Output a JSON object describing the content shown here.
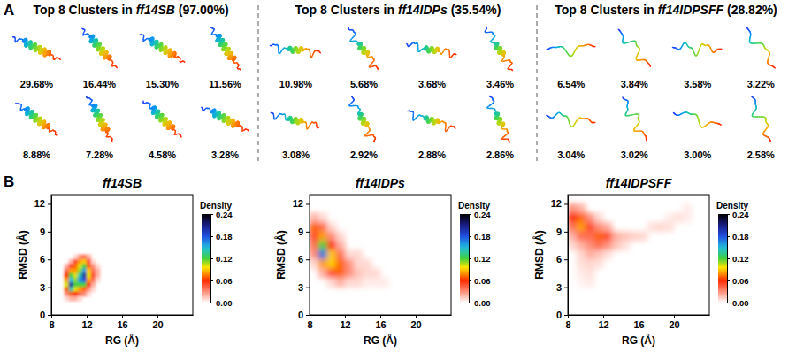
{
  "panel_labels": [
    "A",
    "B"
  ],
  "clusters": [
    {
      "title": "Top 8 Clusters in ff14SB (97.00%)",
      "values": [
        29.68,
        16.44,
        15.3,
        11.56,
        8.88,
        7.28,
        4.58,
        3.28
      ],
      "value_labels": [
        "29.68%",
        "16.44%",
        "15.30%",
        "11.56%",
        "8.88%",
        "7.28%",
        "4.58%",
        "3.28%"
      ]
    },
    {
      "title": "Top 8 Clusters in ff14IDPs (35.54%)",
      "values": [
        10.98,
        5.68,
        3.68,
        3.46,
        3.08,
        2.92,
        2.88,
        2.86
      ],
      "value_labels": [
        "10.98%",
        "5.68%",
        "3.68%",
        "3.46%",
        "3.08%",
        "2.92%",
        "2.88%",
        "2.86%"
      ]
    },
    {
      "title": "Top 8 Clusters in ff14IDPSFF (28.82%)",
      "values": [
        6.54,
        3.84,
        3.58,
        3.22,
        3.04,
        3.02,
        3.0,
        2.58
      ],
      "value_labels": [
        "6.54%",
        "3.84%",
        "3.58%",
        "3.22%",
        "3.04%",
        "3.02%",
        "3.00%",
        "2.58%"
      ]
    }
  ],
  "chart_data": [
    {
      "type": "heatmap",
      "title": "ff14SB",
      "x_label": "RG (Å)",
      "y_label": "RMSD (Å)",
      "xlim": [
        8,
        24
      ],
      "xticks": [
        8,
        12,
        16,
        20
      ],
      "ylim": [
        0,
        13
      ],
      "yticks": [
        0,
        3,
        6,
        9,
        12
      ],
      "cells": [
        [
          10.75,
          6.25,
          0.01
        ],
        [
          11.25,
          6.25,
          0.03
        ],
        [
          11.75,
          6.25,
          0.04
        ],
        [
          12.25,
          6.25,
          0.02
        ],
        [
          10.25,
          5.75,
          0.02
        ],
        [
          10.75,
          5.75,
          0.05
        ],
        [
          11.25,
          5.75,
          0.08
        ],
        [
          11.75,
          5.75,
          0.09
        ],
        [
          12.25,
          5.75,
          0.05
        ],
        [
          12.75,
          5.75,
          0.01
        ],
        [
          9.75,
          5.25,
          0.02
        ],
        [
          10.25,
          5.25,
          0.05
        ],
        [
          10.75,
          5.25,
          0.07
        ],
        [
          11.25,
          5.25,
          0.1
        ],
        [
          11.75,
          5.25,
          0.12
        ],
        [
          12.25,
          5.25,
          0.07
        ],
        [
          12.75,
          5.25,
          0.03
        ],
        [
          13.25,
          5.25,
          0.01
        ],
        [
          9.75,
          4.75,
          0.04
        ],
        [
          10.25,
          4.75,
          0.08
        ],
        [
          10.75,
          4.75,
          0.08
        ],
        [
          11.25,
          4.75,
          0.11
        ],
        [
          11.75,
          4.75,
          0.16
        ],
        [
          12.25,
          4.75,
          0.09
        ],
        [
          12.75,
          4.75,
          0.04
        ],
        [
          13.25,
          4.75,
          0.02
        ],
        [
          9.75,
          4.25,
          0.06
        ],
        [
          10.25,
          4.25,
          0.12
        ],
        [
          10.75,
          4.25,
          0.1
        ],
        [
          11.25,
          4.25,
          0.14
        ],
        [
          11.75,
          4.25,
          0.2
        ],
        [
          12.25,
          4.25,
          0.1
        ],
        [
          12.75,
          4.25,
          0.05
        ],
        [
          13.25,
          4.25,
          0.02
        ],
        [
          9.75,
          3.75,
          0.08
        ],
        [
          10.25,
          3.75,
          0.15
        ],
        [
          10.75,
          3.75,
          0.11
        ],
        [
          11.25,
          3.75,
          0.16
        ],
        [
          11.75,
          3.75,
          0.18
        ],
        [
          12.25,
          3.75,
          0.08
        ],
        [
          12.75,
          3.75,
          0.04
        ],
        [
          13.25,
          3.75,
          0.01
        ],
        [
          9.75,
          3.25,
          0.1
        ],
        [
          10.25,
          3.25,
          0.2
        ],
        [
          10.75,
          3.25,
          0.12
        ],
        [
          11.25,
          3.25,
          0.12
        ],
        [
          11.75,
          3.25,
          0.12
        ],
        [
          12.25,
          3.25,
          0.06
        ],
        [
          12.75,
          3.25,
          0.02
        ],
        [
          9.75,
          2.75,
          0.07
        ],
        [
          10.25,
          2.75,
          0.14
        ],
        [
          10.75,
          2.75,
          0.1
        ],
        [
          11.25,
          2.75,
          0.08
        ],
        [
          11.75,
          2.75,
          0.07
        ],
        [
          12.25,
          2.75,
          0.03
        ],
        [
          12.75,
          2.75,
          0.01
        ],
        [
          9.75,
          2.25,
          0.03
        ],
        [
          10.25,
          2.25,
          0.07
        ],
        [
          10.75,
          2.25,
          0.06
        ],
        [
          11.25,
          2.25,
          0.04
        ],
        [
          11.75,
          2.25,
          0.03
        ],
        [
          12.25,
          2.25,
          0.01
        ],
        [
          9.75,
          1.75,
          0.01
        ],
        [
          10.25,
          1.75,
          0.02
        ],
        [
          10.75,
          1.75,
          0.02
        ],
        [
          11.25,
          1.75,
          0.01
        ]
      ],
      "colorbar": {
        "title": "Density",
        "lim": [
          0,
          0.24
        ],
        "ticks": [
          {
            "value": 0,
            "label": "0.00"
          },
          0.06,
          0.12,
          0.18,
          0.24
        ]
      }
    },
    {
      "type": "heatmap",
      "title": "ff14IDPs",
      "x_label": "RG (Å)",
      "y_label": "RMSD (Å)",
      "xlim": [
        8,
        24
      ],
      "xticks": [
        8,
        12,
        16,
        20
      ],
      "ylim": [
        0,
        13
      ],
      "yticks": [
        0,
        3,
        6,
        9,
        12
      ],
      "cells": [
        [
          8.5,
          10.5,
          0.02
        ],
        [
          9.5,
          10.5,
          0.01
        ],
        [
          8.5,
          9.5,
          0.07
        ],
        [
          9.5,
          9.5,
          0.04
        ],
        [
          10.5,
          9.5,
          0.01
        ],
        [
          8.5,
          8.5,
          0.05
        ],
        [
          9.5,
          8.5,
          0.08
        ],
        [
          10.5,
          8.5,
          0.03
        ],
        [
          11.5,
          8.5,
          0.01
        ],
        [
          8.5,
          7.5,
          0.04
        ],
        [
          9.5,
          7.5,
          0.12
        ],
        [
          10.5,
          7.5,
          0.06
        ],
        [
          11.5,
          7.5,
          0.02
        ],
        [
          8.5,
          6.5,
          0.03
        ],
        [
          9.5,
          6.5,
          0.17
        ],
        [
          10.5,
          6.5,
          0.09
        ],
        [
          11.5,
          6.5,
          0.04
        ],
        [
          12.5,
          6.5,
          0.01
        ],
        [
          13.5,
          6.5,
          0.01
        ],
        [
          8.5,
          5.5,
          0.01
        ],
        [
          9.5,
          5.5,
          0.08
        ],
        [
          10.5,
          5.5,
          0.09
        ],
        [
          11.5,
          5.5,
          0.07
        ],
        [
          12.5,
          5.5,
          0.03
        ],
        [
          13.5,
          5.5,
          0.01
        ],
        [
          14.5,
          5.5,
          0.01
        ],
        [
          9.5,
          4.5,
          0.02
        ],
        [
          10.5,
          4.5,
          0.05
        ],
        [
          11.5,
          4.5,
          0.07
        ],
        [
          12.5,
          4.5,
          0.03
        ],
        [
          13.5,
          4.5,
          0.015
        ],
        [
          14.5,
          4.5,
          0.01
        ],
        [
          15.5,
          4.5,
          0.01
        ],
        [
          10.5,
          3.5,
          0.01
        ],
        [
          11.5,
          3.5,
          0.02
        ],
        [
          12.5,
          3.5,
          0.01
        ],
        [
          13.5,
          3.5,
          0.01
        ],
        [
          14.5,
          3.5,
          0.005
        ],
        [
          15.5,
          3.5,
          0.005
        ],
        [
          16.5,
          3.5,
          0.005
        ]
      ],
      "colorbar": {
        "title": "Density",
        "lim": [
          0,
          0.24
        ],
        "ticks": [
          {
            "value": 0,
            "label": "0.00"
          },
          0.06,
          0.12,
          0.18,
          0.24
        ]
      }
    },
    {
      "type": "heatmap",
      "title": "ff14IDPSFF",
      "x_label": "RG (Å)",
      "y_label": "RMSD (Å)",
      "xlim": [
        8,
        24
      ],
      "xticks": [
        8,
        12,
        16,
        20
      ],
      "ylim": [
        0,
        13
      ],
      "yticks": [
        0,
        3,
        6,
        9,
        12
      ],
      "cells": [
        [
          8.5,
          11.5,
          0.03
        ],
        [
          9.5,
          11.5,
          0.02
        ],
        [
          21.5,
          11.5,
          0.005
        ],
        [
          8.5,
          10.5,
          0.06
        ],
        [
          9.5,
          10.5,
          0.07
        ],
        [
          10.5,
          10.5,
          0.03
        ],
        [
          11.5,
          10.5,
          0.01
        ],
        [
          19.5,
          10.5,
          0.005
        ],
        [
          20.5,
          10.5,
          0.008
        ],
        [
          21.5,
          10.5,
          0.005
        ],
        [
          8.5,
          9.5,
          0.04
        ],
        [
          9.5,
          9.5,
          0.08
        ],
        [
          10.5,
          9.5,
          0.05
        ],
        [
          11.5,
          9.5,
          0.03
        ],
        [
          12.5,
          9.5,
          0.02
        ],
        [
          17.5,
          9.5,
          0.008
        ],
        [
          18.5,
          9.5,
          0.01
        ],
        [
          19.5,
          9.5,
          0.008
        ],
        [
          8.5,
          8.5,
          0.02
        ],
        [
          9.5,
          8.5,
          0.04
        ],
        [
          10.5,
          8.5,
          0.04
        ],
        [
          11.5,
          8.5,
          0.07
        ],
        [
          12.5,
          8.5,
          0.05
        ],
        [
          13.5,
          8.5,
          0.02
        ],
        [
          14.5,
          8.5,
          0.015
        ],
        [
          15.5,
          8.5,
          0.012
        ],
        [
          16.5,
          8.5,
          0.01
        ],
        [
          8.5,
          7.5,
          0.01
        ],
        [
          9.5,
          7.5,
          0.02
        ],
        [
          10.5,
          7.5,
          0.03
        ],
        [
          11.5,
          7.5,
          0.04
        ],
        [
          12.5,
          7.5,
          0.03
        ],
        [
          13.5,
          7.5,
          0.015
        ],
        [
          14.5,
          7.5,
          0.008
        ],
        [
          9.5,
          6.5,
          0.01
        ],
        [
          10.5,
          6.5,
          0.02
        ],
        [
          11.5,
          6.5,
          0.015
        ],
        [
          12.5,
          6.5,
          0.008
        ],
        [
          9.5,
          5.5,
          0.008
        ],
        [
          10.5,
          5.5,
          0.01
        ],
        [
          11.5,
          5.5,
          0.008
        ],
        [
          9.5,
          4.5,
          0.005
        ],
        [
          10.5,
          4.5,
          0.008
        ],
        [
          9.5,
          3.5,
          0.003
        ],
        [
          10.5,
          3.5,
          0.005
        ]
      ],
      "colorbar": {
        "title": "Density",
        "lim": [
          0,
          0.24
        ],
        "ticks": [
          {
            "value": 0,
            "label": "0.00"
          },
          0.06,
          0.12,
          0.18,
          0.24
        ]
      }
    }
  ]
}
